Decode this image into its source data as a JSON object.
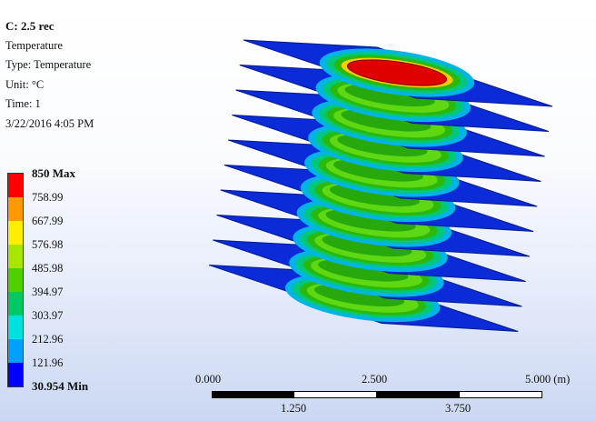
{
  "info": {
    "title": "C: 2.5 rec",
    "result": "Temperature",
    "type": "Type: Temperature",
    "unit": "Unit: °C",
    "time": "Time: 1",
    "date": "3/22/2016 4:05 PM"
  },
  "legend": {
    "max_label": "850 Max",
    "min_label": "30.954 Min",
    "levels": [
      "758.99",
      "667.99",
      "576.98",
      "485.98",
      "394.97",
      "303.97",
      "212.96",
      "121.96"
    ],
    "colors": [
      "#ff0000",
      "#ff9900",
      "#ffee00",
      "#a8e600",
      "#4fd100",
      "#00c864",
      "#00e0e0",
      "#00a0ff",
      "#0000ff"
    ]
  },
  "scale_bar": {
    "top_labels": [
      "0.000",
      "2.500",
      "5.000 (m)"
    ],
    "bottom_labels": [
      "1.250",
      "3.750"
    ]
  },
  "model": {
    "plate_count": 10,
    "plate_color": "#0b2bd8",
    "hot_color": "#e00000",
    "warm_color": "#2bb80b"
  }
}
